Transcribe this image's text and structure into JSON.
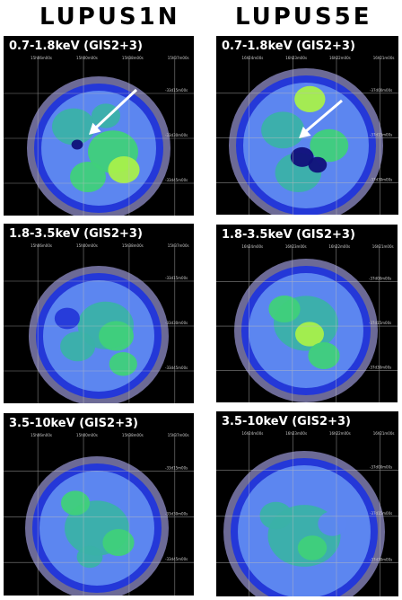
{
  "columns": [
    {
      "title": "LUPUS1N",
      "panels": [
        {
          "band": "0.7-1.8keV (GIS2+3)",
          "ra_labels": [
            "15h46m00s",
            "15h40m00s",
            "15h38m00s",
            "15h37m00s"
          ],
          "dec_labels": [
            "-33d15m00s",
            "-33d30m00s",
            "-33d45m00s"
          ],
          "has_arrow": true
        },
        {
          "band": "1.8-3.5keV (GIS2+3)",
          "ra_labels": [
            "15h46m00s",
            "15h40m00s",
            "15h38m00s",
            "15h37m00s"
          ],
          "dec_labels": [
            "-33d15m00s",
            "-33d30m00s",
            "-33d45m00s"
          ],
          "has_arrow": false
        },
        {
          "band": "3.5-10keV (GIS2+3)",
          "ra_labels": [
            "15h46m00s",
            "15h40m00s",
            "15h38m00s",
            "15h37m00s"
          ],
          "dec_labels": [
            "-33d15m00s",
            "-33d30m00s",
            "-33d45m00s"
          ],
          "has_arrow": false
        }
      ]
    },
    {
      "title": "LUPUS5E",
      "panels": [
        {
          "band": "0.7-1.8keV (GIS2+3)",
          "ra_labels": [
            "16h24m00s",
            "16h23m00s",
            "16h22m00s",
            "16h21m00s"
          ],
          "dec_labels": [
            "-37d00m00s",
            "-37d15m00s",
            "-37d30m00s"
          ],
          "has_arrow": true
        },
        {
          "band": "1.8-3.5keV (GIS2+3)",
          "ra_labels": [
            "16h24m00s",
            "16h23m00s",
            "16h22m00s",
            "16h21m00s"
          ],
          "dec_labels": [
            "-37d00m00s",
            "-37d15m00s",
            "-37d30m00s"
          ],
          "has_arrow": false
        },
        {
          "band": "3.5-10keV (GIS2+3)",
          "ra_labels": [
            "16h24m00s",
            "16h23m00s",
            "16h22m00s",
            "16h21m00s"
          ],
          "dec_labels": [
            "-37d00m00s",
            "-37d15m00s",
            "-37d30m00s"
          ],
          "has_arrow": false
        }
      ]
    }
  ],
  "colors": {
    "background": "#000000",
    "rim": "#6c6a96",
    "outer": "#2438d8",
    "mid": "#5c86f0",
    "teal": "#3ab1a8",
    "green": "#3fd07a",
    "bright": "#a8f04a",
    "hole": "#10107a",
    "grid": "#bdbdbd",
    "arrow": "#ffffff"
  }
}
